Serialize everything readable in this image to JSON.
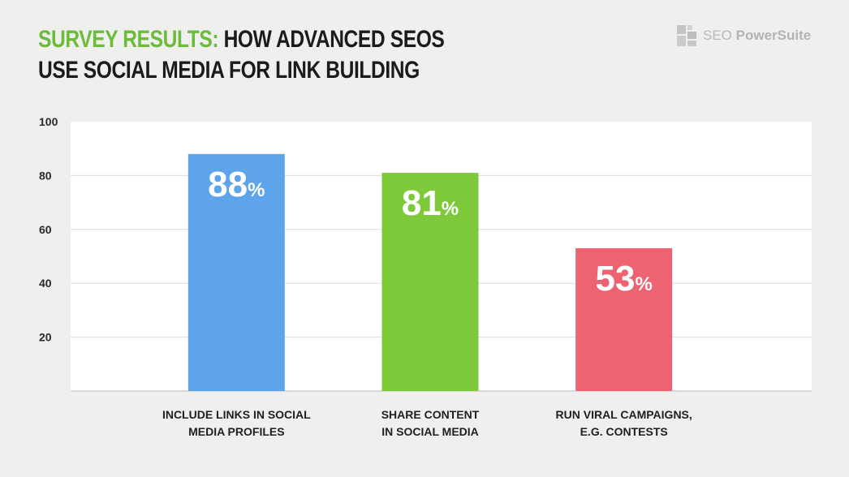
{
  "header": {
    "title_highlight": "SURVEY RESULTS:",
    "title_rest": " HOW ADVANCED SEOS",
    "title_line2": "USE SOCIAL MEDIA FOR LINK BUILDING",
    "title_highlight_color": "#6dbb3a"
  },
  "brand": {
    "logo_icon": "seo-powersuite-logo-icon",
    "name_light": "SEO ",
    "name_bold": "PowerSuite"
  },
  "chart_data": {
    "type": "bar",
    "categories": [
      [
        "INCLUDE LINKS IN SOCIAL",
        "MEDIA PROFILES"
      ],
      [
        "SHARE CONTENT",
        "IN SOCIAL MEDIA"
      ],
      [
        "RUN VIRAL CAMPAIGNS,",
        "E.G. CONTESTS"
      ]
    ],
    "values": [
      88,
      81,
      53
    ],
    "data_labels": [
      "88",
      "81",
      "53"
    ],
    "data_label_unit": "%",
    "colors": [
      "#5ea4ea",
      "#7ec93a",
      "#ee6372"
    ],
    "ylim": [
      0,
      100
    ],
    "yticks": [
      20,
      40,
      60,
      80,
      100
    ],
    "grid": true
  }
}
